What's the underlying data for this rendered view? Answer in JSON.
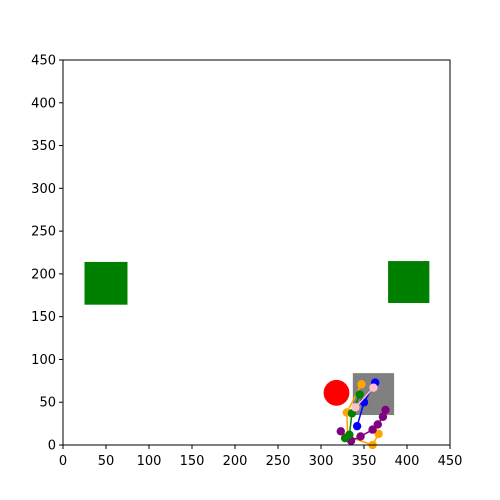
{
  "chart_data": {
    "type": "scatter",
    "title": "",
    "xlabel": "",
    "ylabel": "",
    "xlim": [
      0,
      450
    ],
    "ylim": [
      0,
      450
    ],
    "grid": false,
    "x_ticks": [
      0,
      50,
      100,
      150,
      200,
      250,
      300,
      350,
      400,
      450
    ],
    "y_ticks": [
      0,
      50,
      100,
      150,
      200,
      250,
      300,
      350,
      400,
      450
    ],
    "x_tick_labels": [
      "0",
      "50",
      "100",
      "150",
      "200",
      "250",
      "300",
      "350",
      "400",
      "450"
    ],
    "y_tick_labels": [
      "0",
      "50",
      "100",
      "150",
      "200",
      "250",
      "300",
      "350",
      "400",
      "450"
    ],
    "rectangles": [
      {
        "x": [
          25,
          75
        ],
        "y": [
          164,
          214
        ],
        "color": "#008000"
      },
      {
        "x": [
          378,
          426
        ],
        "y": [
          166,
          215
        ],
        "color": "#008000"
      },
      {
        "x": [
          337,
          385
        ],
        "y": [
          35,
          84
        ],
        "color": "#808080"
      }
    ],
    "circles": [
      {
        "x": 318,
        "y": 61,
        "r": 15,
        "color": "#ff0000"
      }
    ],
    "series": [
      {
        "color": "#0000ff",
        "points": [
          [
            363,
            73
          ],
          [
            350,
            50
          ],
          [
            342,
            22
          ]
        ]
      },
      {
        "color": "#ffa500",
        "points": [
          [
            347,
            71
          ],
          [
            330,
            38
          ],
          [
            331,
            10
          ],
          [
            360,
            0
          ],
          [
            367,
            13
          ]
        ]
      },
      {
        "color": "#800080",
        "points": [
          [
            375,
            41
          ],
          [
            372,
            33
          ],
          [
            366,
            24
          ],
          [
            360,
            18
          ],
          [
            346,
            10
          ],
          [
            335,
            5
          ],
          [
            323,
            16
          ]
        ]
      },
      {
        "color": "#008000",
        "points": [
          [
            345,
            59
          ],
          [
            336,
            37
          ],
          [
            333,
            12
          ],
          [
            328,
            8
          ]
        ]
      },
      {
        "color": "#ffc0cb",
        "points": [
          [
            361,
            67
          ],
          [
            340,
            44
          ]
        ]
      }
    ]
  }
}
